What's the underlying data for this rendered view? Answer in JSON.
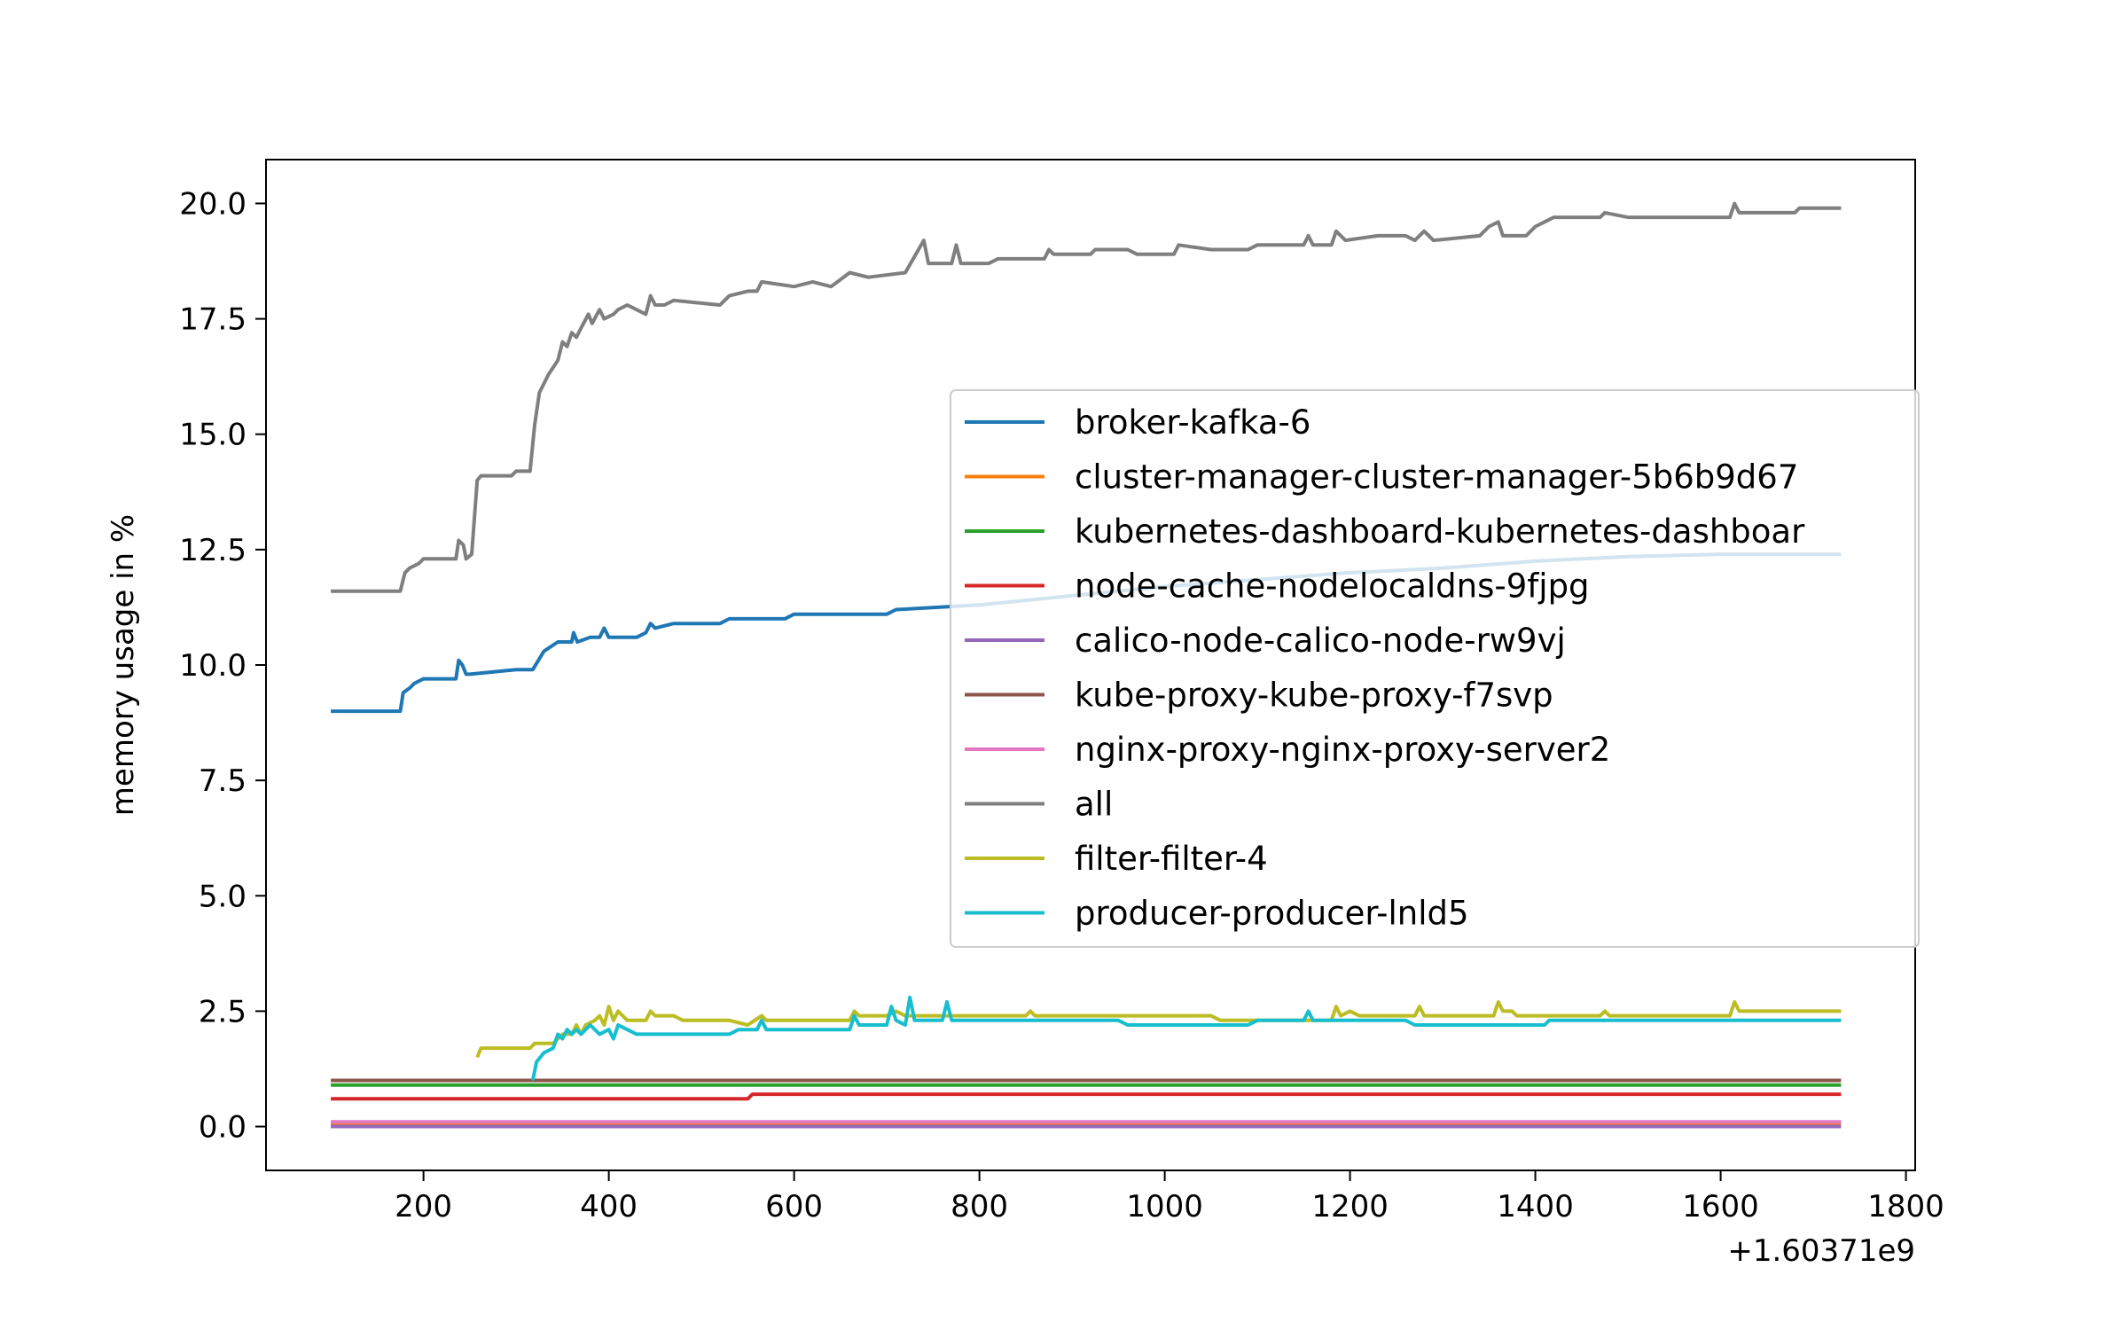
{
  "chart_data": {
    "type": "line",
    "title": "",
    "xlabel": "",
    "ylabel": "memory usage in %",
    "x_offset_label": "+1.60371e9",
    "xlim": [
      30,
      1810
    ],
    "ylim": [
      -0.95,
      20.95
    ],
    "xticks": [
      200,
      400,
      600,
      800,
      1000,
      1200,
      1400,
      1600,
      1800
    ],
    "xtick_labels": [
      "200",
      "400",
      "600",
      "800",
      "1000",
      "1200",
      "1400",
      "1600",
      "1800"
    ],
    "yticks": [
      0,
      2.5,
      5,
      7.5,
      10,
      12.5,
      15,
      17.5,
      20
    ],
    "ytick_labels": [
      "0.0",
      "2.5",
      "5.0",
      "7.5",
      "10.0",
      "12.5",
      "15.0",
      "17.5",
      "20.0"
    ],
    "grid": false,
    "legend_position": "center-right",
    "series": [
      {
        "name": "broker-kafka-6",
        "color": "#1f77b4",
        "points": [
          [
            100,
            9.0
          ],
          [
            175,
            9.0
          ],
          [
            178,
            9.4
          ],
          [
            185,
            9.5
          ],
          [
            190,
            9.6
          ],
          [
            200,
            9.7
          ],
          [
            235,
            9.7
          ],
          [
            238,
            10.1
          ],
          [
            242,
            10.0
          ],
          [
            246,
            9.8
          ],
          [
            250,
            9.8
          ],
          [
            300,
            9.9
          ],
          [
            318,
            9.9
          ],
          [
            330,
            10.3
          ],
          [
            345,
            10.5
          ],
          [
            360,
            10.5
          ],
          [
            362,
            10.7
          ],
          [
            366,
            10.5
          ],
          [
            380,
            10.6
          ],
          [
            390,
            10.6
          ],
          [
            395,
            10.8
          ],
          [
            400,
            10.6
          ],
          [
            430,
            10.6
          ],
          [
            440,
            10.7
          ],
          [
            445,
            10.9
          ],
          [
            450,
            10.8
          ],
          [
            470,
            10.9
          ],
          [
            520,
            10.9
          ],
          [
            530,
            11.0
          ],
          [
            590,
            11.0
          ],
          [
            600,
            11.1
          ],
          [
            700,
            11.1
          ],
          [
            710,
            11.2
          ],
          [
            800,
            11.3
          ],
          [
            900,
            11.5
          ],
          [
            1000,
            11.7
          ],
          [
            1100,
            11.85
          ],
          [
            1200,
            12.0
          ],
          [
            1300,
            12.1
          ],
          [
            1400,
            12.25
          ],
          [
            1500,
            12.35
          ],
          [
            1600,
            12.4
          ],
          [
            1680,
            12.4
          ],
          [
            1730,
            12.4
          ]
        ]
      },
      {
        "name": "cluster-manager-cluster-manager-5b6b9d67",
        "color": "#ff7f0e",
        "points": [
          [
            100,
            0.05
          ],
          [
            1730,
            0.05
          ]
        ]
      },
      {
        "name": "kubernetes-dashboard-kubernetes-dashboar",
        "color": "#2ca02c",
        "points": [
          [
            100,
            0.9
          ],
          [
            1730,
            0.9
          ]
        ]
      },
      {
        "name": "node-cache-nodelocaldns-9fjpg",
        "color": "#d62728",
        "points": [
          [
            100,
            0.6
          ],
          [
            550,
            0.6
          ],
          [
            555,
            0.7
          ],
          [
            1730,
            0.7
          ]
        ]
      },
      {
        "name": "calico-node-calico-node-rw9vj",
        "color": "#9467bd",
        "points": [
          [
            100,
            0.0
          ],
          [
            1730,
            0.0
          ]
        ]
      },
      {
        "name": "kube-proxy-kube-proxy-f7svp",
        "color": "#8c564b",
        "points": [
          [
            100,
            1.0
          ],
          [
            1730,
            1.0
          ]
        ]
      },
      {
        "name": "nginx-proxy-nginx-proxy-server2",
        "color": "#e377c2",
        "points": [
          [
            100,
            0.1
          ],
          [
            1730,
            0.1
          ]
        ]
      },
      {
        "name": "all",
        "color": "#7f7f7f",
        "points": [
          [
            100,
            11.6
          ],
          [
            175,
            11.6
          ],
          [
            180,
            12.0
          ],
          [
            185,
            12.1
          ],
          [
            195,
            12.2
          ],
          [
            200,
            12.3
          ],
          [
            235,
            12.3
          ],
          [
            238,
            12.7
          ],
          [
            243,
            12.6
          ],
          [
            246,
            12.3
          ],
          [
            252,
            12.4
          ],
          [
            258,
            14.0
          ],
          [
            262,
            14.1
          ],
          [
            295,
            14.1
          ],
          [
            300,
            14.2
          ],
          [
            315,
            14.2
          ],
          [
            320,
            15.2
          ],
          [
            325,
            15.9
          ],
          [
            335,
            16.3
          ],
          [
            345,
            16.6
          ],
          [
            350,
            17.0
          ],
          [
            355,
            16.9
          ],
          [
            360,
            17.2
          ],
          [
            365,
            17.1
          ],
          [
            370,
            17.3
          ],
          [
            378,
            17.6
          ],
          [
            382,
            17.4
          ],
          [
            390,
            17.7
          ],
          [
            395,
            17.5
          ],
          [
            405,
            17.6
          ],
          [
            410,
            17.7
          ],
          [
            420,
            17.8
          ],
          [
            440,
            17.6
          ],
          [
            445,
            18.0
          ],
          [
            450,
            17.8
          ],
          [
            460,
            17.8
          ],
          [
            470,
            17.9
          ],
          [
            520,
            17.8
          ],
          [
            530,
            18.0
          ],
          [
            550,
            18.1
          ],
          [
            560,
            18.1
          ],
          [
            565,
            18.3
          ],
          [
            600,
            18.2
          ],
          [
            620,
            18.3
          ],
          [
            640,
            18.2
          ],
          [
            660,
            18.5
          ],
          [
            680,
            18.4
          ],
          [
            720,
            18.5
          ],
          [
            740,
            19.2
          ],
          [
            745,
            18.7
          ],
          [
            770,
            18.7
          ],
          [
            775,
            19.1
          ],
          [
            780,
            18.7
          ],
          [
            810,
            18.7
          ],
          [
            820,
            18.8
          ],
          [
            870,
            18.8
          ],
          [
            875,
            19.0
          ],
          [
            880,
            18.9
          ],
          [
            920,
            18.9
          ],
          [
            925,
            19.0
          ],
          [
            960,
            19.0
          ],
          [
            970,
            18.9
          ],
          [
            1010,
            18.9
          ],
          [
            1015,
            19.1
          ],
          [
            1050,
            19.0
          ],
          [
            1090,
            19.0
          ],
          [
            1100,
            19.1
          ],
          [
            1150,
            19.1
          ],
          [
            1155,
            19.3
          ],
          [
            1160,
            19.1
          ],
          [
            1180,
            19.1
          ],
          [
            1185,
            19.4
          ],
          [
            1195,
            19.2
          ],
          [
            1230,
            19.3
          ],
          [
            1260,
            19.3
          ],
          [
            1270,
            19.2
          ],
          [
            1280,
            19.4
          ],
          [
            1290,
            19.2
          ],
          [
            1340,
            19.3
          ],
          [
            1350,
            19.5
          ],
          [
            1360,
            19.6
          ],
          [
            1365,
            19.3
          ],
          [
            1390,
            19.3
          ],
          [
            1400,
            19.5
          ],
          [
            1420,
            19.7
          ],
          [
            1470,
            19.7
          ],
          [
            1475,
            19.8
          ],
          [
            1500,
            19.7
          ],
          [
            1610,
            19.7
          ],
          [
            1615,
            20.0
          ],
          [
            1620,
            19.8
          ],
          [
            1680,
            19.8
          ],
          [
            1685,
            19.9
          ],
          [
            1730,
            19.9
          ]
        ]
      },
      {
        "name": "filter-filter-4",
        "color": "#bcbd22",
        "points": [
          [
            258,
            1.5
          ],
          [
            262,
            1.7
          ],
          [
            315,
            1.7
          ],
          [
            320,
            1.8
          ],
          [
            340,
            1.8
          ],
          [
            350,
            2.0
          ],
          [
            360,
            2.0
          ],
          [
            365,
            2.2
          ],
          [
            370,
            2.0
          ],
          [
            375,
            2.2
          ],
          [
            385,
            2.3
          ],
          [
            390,
            2.4
          ],
          [
            395,
            2.2
          ],
          [
            400,
            2.6
          ],
          [
            405,
            2.3
          ],
          [
            410,
            2.5
          ],
          [
            420,
            2.3
          ],
          [
            440,
            2.3
          ],
          [
            445,
            2.5
          ],
          [
            450,
            2.4
          ],
          [
            470,
            2.4
          ],
          [
            480,
            2.3
          ],
          [
            530,
            2.3
          ],
          [
            550,
            2.2
          ],
          [
            565,
            2.4
          ],
          [
            570,
            2.3
          ],
          [
            660,
            2.3
          ],
          [
            665,
            2.5
          ],
          [
            670,
            2.4
          ],
          [
            700,
            2.4
          ],
          [
            710,
            2.5
          ],
          [
            720,
            2.4
          ],
          [
            780,
            2.4
          ],
          [
            790,
            2.4
          ],
          [
            850,
            2.4
          ],
          [
            855,
            2.5
          ],
          [
            860,
            2.4
          ],
          [
            1050,
            2.4
          ],
          [
            1060,
            2.3
          ],
          [
            1180,
            2.3
          ],
          [
            1185,
            2.6
          ],
          [
            1190,
            2.4
          ],
          [
            1200,
            2.5
          ],
          [
            1210,
            2.4
          ],
          [
            1270,
            2.4
          ],
          [
            1275,
            2.6
          ],
          [
            1280,
            2.4
          ],
          [
            1355,
            2.4
          ],
          [
            1360,
            2.7
          ],
          [
            1365,
            2.5
          ],
          [
            1375,
            2.5
          ],
          [
            1380,
            2.4
          ],
          [
            1470,
            2.4
          ],
          [
            1475,
            2.5
          ],
          [
            1480,
            2.4
          ],
          [
            1610,
            2.4
          ],
          [
            1615,
            2.7
          ],
          [
            1620,
            2.5
          ],
          [
            1730,
            2.5
          ]
        ]
      },
      {
        "name": "producer-producer-lnld5",
        "color": "#17becf",
        "points": [
          [
            318,
            1.0
          ],
          [
            322,
            1.4
          ],
          [
            330,
            1.6
          ],
          [
            340,
            1.7
          ],
          [
            345,
            2.0
          ],
          [
            350,
            1.9
          ],
          [
            355,
            2.1
          ],
          [
            360,
            2.0
          ],
          [
            365,
            2.1
          ],
          [
            370,
            2.0
          ],
          [
            380,
            2.2
          ],
          [
            390,
            2.0
          ],
          [
            400,
            2.1
          ],
          [
            405,
            1.9
          ],
          [
            410,
            2.2
          ],
          [
            420,
            2.1
          ],
          [
            430,
            2.0
          ],
          [
            530,
            2.0
          ],
          [
            540,
            2.1
          ],
          [
            560,
            2.1
          ],
          [
            565,
            2.3
          ],
          [
            570,
            2.1
          ],
          [
            660,
            2.1
          ],
          [
            665,
            2.4
          ],
          [
            670,
            2.2
          ],
          [
            700,
            2.2
          ],
          [
            705,
            2.6
          ],
          [
            710,
            2.3
          ],
          [
            720,
            2.2
          ],
          [
            725,
            2.8
          ],
          [
            730,
            2.3
          ],
          [
            760,
            2.3
          ],
          [
            765,
            2.7
          ],
          [
            770,
            2.3
          ],
          [
            950,
            2.3
          ],
          [
            960,
            2.2
          ],
          [
            1090,
            2.2
          ],
          [
            1100,
            2.3
          ],
          [
            1150,
            2.3
          ],
          [
            1155,
            2.5
          ],
          [
            1160,
            2.3
          ],
          [
            1260,
            2.3
          ],
          [
            1270,
            2.2
          ],
          [
            1410,
            2.2
          ],
          [
            1415,
            2.3
          ],
          [
            1730,
            2.3
          ]
        ]
      }
    ]
  }
}
